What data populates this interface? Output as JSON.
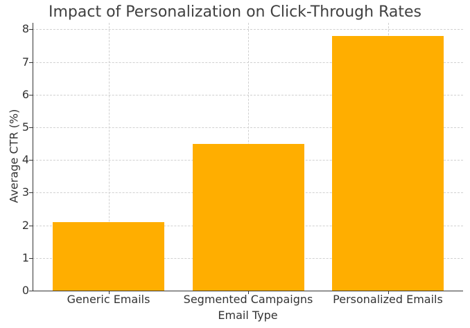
{
  "chart_data": {
    "type": "bar",
    "title": "Impact of Personalization on Click-Through Rates",
    "xlabel": "Email Type",
    "ylabel": "Average CTR (%)",
    "categories": [
      "Generic Emails",
      "Segmented Campaigns",
      "Personalized Emails"
    ],
    "values": [
      2.1,
      4.5,
      7.8
    ],
    "ylim": [
      0,
      8.2
    ],
    "yticks": [
      0,
      1,
      2,
      3,
      4,
      5,
      6,
      7,
      8
    ],
    "grid": true,
    "legend": null,
    "bar_color": "#ffae00"
  }
}
